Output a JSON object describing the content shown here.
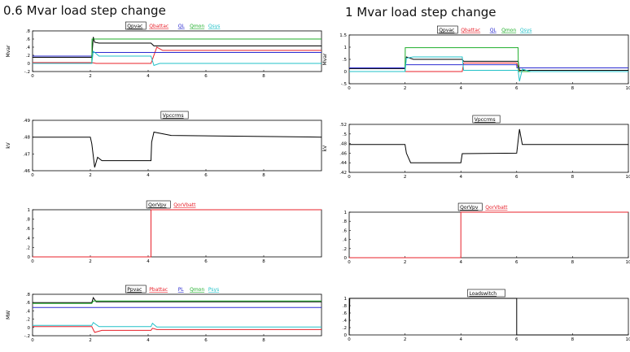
{
  "page": {
    "left_title": "0.6 Mvar load step change",
    "right_title": "1 Mvar load step change"
  },
  "chart_data": [
    {
      "id": "L1",
      "type": "line",
      "ylabel": "Mvar",
      "xlim": [
        0,
        10
      ],
      "ylim": [
        -0.2,
        0.8
      ],
      "yticks": [
        -0.2,
        0,
        0.2,
        0.4,
        0.6,
        0.8
      ],
      "xticks": [
        0,
        2,
        4,
        6,
        8
      ],
      "series": [
        {
          "name": "Qpvac",
          "color": "#000000",
          "x": [
            0,
            2.05,
            2.1,
            2.15,
            2.3,
            4.1,
            4.2,
            10
          ],
          "y": [
            0.15,
            0.15,
            0.65,
            0.52,
            0.5,
            0.5,
            0.43,
            0.43
          ]
        },
        {
          "name": "Qbattac",
          "color": "#e8202a",
          "x": [
            0,
            2.05,
            2.2,
            4.1,
            4.3,
            4.5,
            10
          ],
          "y": [
            0.02,
            0.02,
            0.0,
            0.0,
            0.4,
            0.32,
            0.32
          ]
        },
        {
          "name": "QL",
          "color": "#2b2bd0",
          "x": [
            0,
            2.05,
            2.06,
            10
          ],
          "y": [
            0.18,
            0.18,
            0.27,
            0.27
          ]
        },
        {
          "name": "Qmon",
          "color": "#1fae2a",
          "x": [
            0,
            2.05,
            2.06,
            10
          ],
          "y": [
            0.0,
            0.0,
            0.6,
            0.6
          ]
        },
        {
          "name": "Qsys",
          "color": "#22c1c8",
          "x": [
            0,
            2.05,
            2.1,
            2.3,
            4.1,
            4.2,
            4.4,
            10
          ],
          "y": [
            0.0,
            0.0,
            0.3,
            0.18,
            0.18,
            -0.05,
            0.0,
            0.0
          ]
        }
      ]
    },
    {
      "id": "L2",
      "type": "line",
      "ylabel": "kV",
      "xlim": [
        0,
        10
      ],
      "ylim": [
        0.46,
        0.49
      ],
      "yticks": [
        0.46,
        0.47,
        0.48,
        0.49
      ],
      "xticks": [
        0,
        2,
        4,
        6,
        8
      ],
      "series": [
        {
          "name": "Vpccrms",
          "color": "#000000",
          "x": [
            0,
            2.0,
            2.05,
            2.15,
            2.25,
            2.4,
            4.1,
            4.12,
            4.2,
            4.8,
            10
          ],
          "y": [
            0.48,
            0.48,
            0.476,
            0.462,
            0.468,
            0.466,
            0.466,
            0.477,
            0.483,
            0.481,
            0.48
          ]
        }
      ]
    },
    {
      "id": "L3",
      "type": "line",
      "ylabel": "",
      "xlim": [
        0,
        10
      ],
      "ylim": [
        0,
        1
      ],
      "yticks": [
        0,
        0.2,
        0.4,
        0.6,
        0.8,
        1
      ],
      "xticks": [
        0,
        2,
        4,
        6,
        8
      ],
      "series": [
        {
          "name": "QorVpv",
          "color": "#000000",
          "x": [
            0,
            4.1
          ],
          "y": [
            0,
            0
          ]
        },
        {
          "name": "QorVbatt",
          "color": "#e8202a",
          "x": [
            0,
            4.1,
            4.1,
            10
          ],
          "y": [
            0,
            0,
            1,
            1
          ]
        }
      ]
    },
    {
      "id": "L4",
      "type": "line",
      "ylabel": "MW",
      "xlim": [
        0,
        10
      ],
      "ylim": [
        -0.2,
        0.8
      ],
      "yticks": [
        -0.2,
        0,
        0.2,
        0.4,
        0.6,
        0.8
      ],
      "xticks": [
        0,
        2,
        4,
        6,
        8
      ],
      "series": [
        {
          "name": "Ppvac",
          "color": "#000000",
          "x": [
            0,
            2.05,
            2.1,
            2.2,
            10
          ],
          "y": [
            0.6,
            0.6,
            0.72,
            0.62,
            0.62
          ]
        },
        {
          "name": "Pbattac",
          "color": "#e8202a",
          "x": [
            0,
            2.05,
            2.15,
            2.4,
            4.1,
            4.15,
            4.3,
            10
          ],
          "y": [
            0.02,
            0.02,
            -0.12,
            -0.07,
            -0.07,
            -0.02,
            -0.05,
            -0.05
          ]
        },
        {
          "name": "PL",
          "color": "#2b2bd0",
          "x": [
            0,
            10
          ],
          "y": [
            0.48,
            0.48
          ]
        },
        {
          "name": "Qmon",
          "color": "#1fae2a",
          "x": [
            0,
            2.05,
            2.1,
            10
          ],
          "y": [
            0.58,
            0.58,
            0.64,
            0.64
          ]
        },
        {
          "name": "Psys",
          "color": "#22c1c8",
          "x": [
            0,
            2.05,
            2.1,
            2.3,
            4.1,
            4.15,
            4.3,
            10
          ],
          "y": [
            0.05,
            0.05,
            0.12,
            0.02,
            0.02,
            0.1,
            0.01,
            0.01
          ]
        }
      ]
    },
    {
      "id": "R1",
      "type": "line",
      "ylabel": "Mvar",
      "xlim": [
        0,
        10
      ],
      "ylim": [
        -0.5,
        1.5
      ],
      "yticks": [
        -0.5,
        0,
        0.5,
        1,
        1.5
      ],
      "xticks": [
        0,
        2,
        4,
        6,
        8,
        10
      ],
      "series": [
        {
          "name": "Qpvac",
          "color": "#000000",
          "x": [
            0,
            2.0,
            2.05,
            2.3,
            4.05,
            4.1,
            6.05,
            6.1,
            10
          ],
          "y": [
            0.12,
            0.12,
            0.6,
            0.5,
            0.5,
            0.42,
            0.42,
            0.05,
            0.05
          ]
        },
        {
          "name": "Qbattac",
          "color": "#e8202a",
          "x": [
            0,
            4.05,
            4.1,
            6.0,
            6.1,
            10
          ],
          "y": [
            0.0,
            0.0,
            0.35,
            0.35,
            0.0,
            0.0
          ]
        },
        {
          "name": "QL",
          "color": "#2b2bd0",
          "x": [
            0,
            2.0,
            2.01,
            6.0,
            6.01,
            10
          ],
          "y": [
            0.15,
            0.15,
            0.28,
            0.28,
            0.15,
            0.15
          ]
        },
        {
          "name": "Qmon",
          "color": "#1fae2a",
          "x": [
            0,
            2.0,
            2.01,
            6.05,
            6.06,
            10
          ],
          "y": [
            0.0,
            0.0,
            0.98,
            0.98,
            0.0,
            0.0
          ]
        },
        {
          "name": "Qsys",
          "color": "#22c1c8",
          "x": [
            0,
            2.0,
            2.05,
            2.3,
            4.05,
            4.1,
            6.05,
            6.1,
            6.2,
            6.5,
            10
          ],
          "y": [
            0.0,
            0.0,
            0.55,
            0.6,
            0.6,
            0.05,
            0.05,
            -0.4,
            0.1,
            0.0,
            0.0
          ]
        }
      ]
    },
    {
      "id": "R2",
      "type": "line",
      "ylabel": "kV",
      "xlim": [
        0,
        10
      ],
      "ylim": [
        0.42,
        0.52
      ],
      "yticks": [
        0.42,
        0.44,
        0.46,
        0.48,
        0.5,
        0.52
      ],
      "xticks": [
        0,
        2,
        4,
        6,
        8,
        10
      ],
      "series": [
        {
          "name": "Vpccrms",
          "color": "#000000",
          "x": [
            0,
            2.0,
            2.05,
            2.2,
            4.0,
            4.05,
            6.0,
            6.1,
            6.2,
            6.3,
            10
          ],
          "y": [
            0.478,
            0.478,
            0.46,
            0.44,
            0.44,
            0.459,
            0.46,
            0.51,
            0.478,
            0.478,
            0.478
          ]
        }
      ]
    },
    {
      "id": "R3",
      "type": "line",
      "ylabel": "",
      "xlim": [
        0,
        10
      ],
      "ylim": [
        0,
        1
      ],
      "yticks": [
        0,
        0.2,
        0.4,
        0.6,
        0.8,
        1
      ],
      "xticks": [
        0,
        2,
        4,
        6,
        8,
        10
      ],
      "series": [
        {
          "name": "QorVpv",
          "color": "#000000",
          "x": [
            0,
            4.0
          ],
          "y": [
            0,
            0
          ]
        },
        {
          "name": "QorVbatt",
          "color": "#e8202a",
          "x": [
            0,
            4.0,
            4.0,
            10
          ],
          "y": [
            0,
            0,
            1,
            1
          ]
        }
      ]
    },
    {
      "id": "R4",
      "type": "line",
      "ylabel": "",
      "xlim": [
        0,
        10
      ],
      "ylim": [
        0,
        1
      ],
      "yticks": [
        0,
        0.2,
        0.4,
        0.6,
        0.8,
        1
      ],
      "xticks": [
        0,
        2,
        4,
        6,
        8,
        10
      ],
      "series": [
        {
          "name": "Loadswitch",
          "color": "#000000",
          "x": [
            0,
            0.02,
            6.0,
            6.0,
            10
          ],
          "y": [
            0,
            1,
            1,
            0,
            0
          ]
        }
      ]
    }
  ]
}
